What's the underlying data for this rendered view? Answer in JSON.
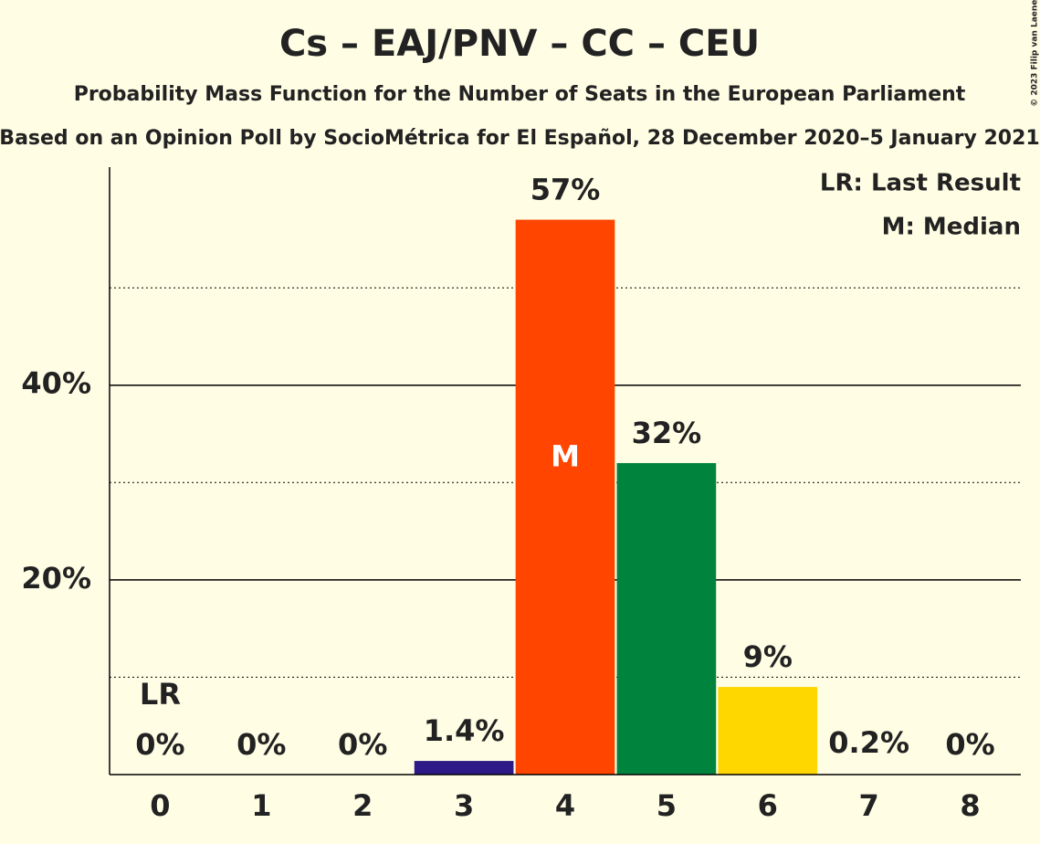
{
  "chart_data": {
    "type": "bar",
    "title": "Cs – EAJ/PNV – CC – CEU",
    "subtitle": "Probability Mass Function for the Number of Seats in the European Parliament",
    "subtitle2": "Based on an Opinion Poll by SocioMétrica for El Español, 28 December 2020–5 January 2021",
    "categories": [
      "0",
      "1",
      "2",
      "3",
      "4",
      "5",
      "6",
      "7",
      "8"
    ],
    "values": [
      0,
      0,
      0,
      1.4,
      57,
      32,
      9,
      0.2,
      0
    ],
    "value_labels": [
      "0%",
      "0%",
      "0%",
      "1.4%",
      "57%",
      "32%",
      "9%",
      "0.2%",
      "0%"
    ],
    "colors": [
      null,
      null,
      null,
      "#2e1a87",
      "#ff4500",
      "#00843d",
      "#ffd700",
      null,
      null
    ],
    "ylim": [
      0,
      62.4
    ],
    "yticks": [
      {
        "value": 20,
        "label": "20%"
      },
      {
        "value": 40,
        "label": "40%"
      }
    ],
    "minor_yticks": [
      10,
      30,
      50
    ],
    "grid": true,
    "annotations": [
      {
        "category": "0",
        "text": "LR"
      },
      {
        "category": "4",
        "text": "M"
      }
    ],
    "legend": [
      "LR: Last Result",
      "M: Median"
    ],
    "legend_position": "upper right",
    "credit": "© 2023 Filip van Laenen"
  }
}
